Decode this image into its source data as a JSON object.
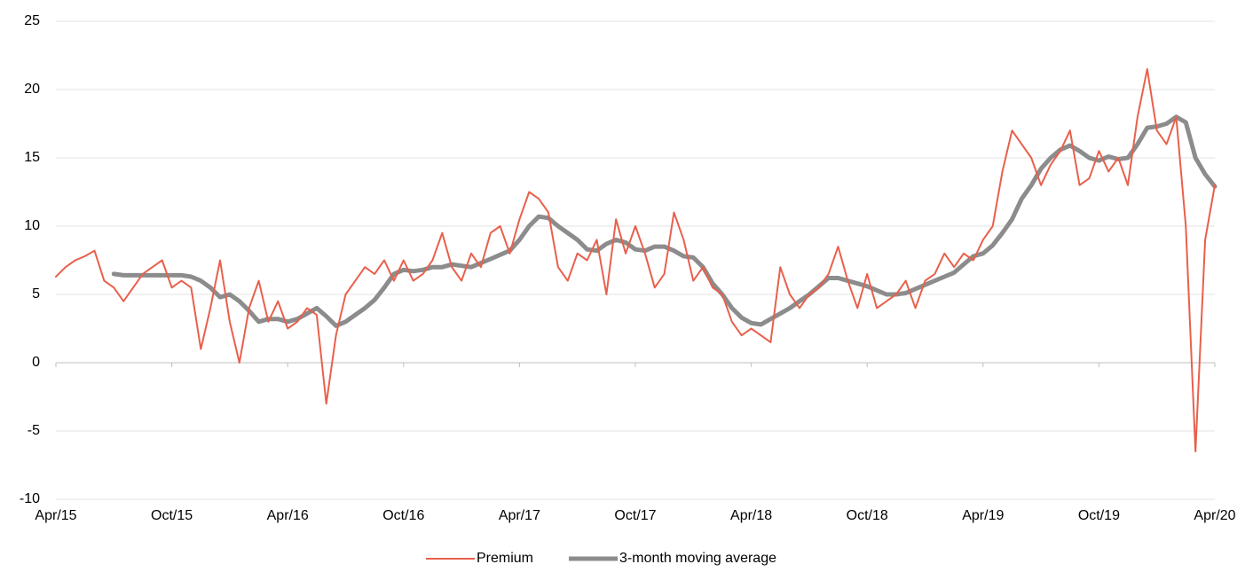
{
  "chart_data": {
    "type": "line",
    "categories": [
      "Apr/15",
      null,
      null,
      null,
      null,
      null,
      null,
      null,
      null,
      null,
      null,
      null,
      "Oct/15",
      null,
      null,
      null,
      null,
      null,
      null,
      null,
      null,
      null,
      null,
      null,
      "Apr/16",
      null,
      null,
      null,
      null,
      null,
      null,
      null,
      null,
      null,
      null,
      null,
      "Oct/16",
      null,
      null,
      null,
      null,
      null,
      null,
      null,
      null,
      null,
      null,
      null,
      "Apr/17",
      null,
      null,
      null,
      null,
      null,
      null,
      null,
      null,
      null,
      null,
      null,
      "Oct/17",
      null,
      null,
      null,
      null,
      null,
      null,
      null,
      null,
      null,
      null,
      null,
      "Apr/18",
      null,
      null,
      null,
      null,
      null,
      null,
      null,
      null,
      null,
      null,
      null,
      "Oct/18",
      null,
      null,
      null,
      null,
      null,
      null,
      null,
      null,
      null,
      null,
      null,
      "Apr/19",
      null,
      null,
      null,
      null,
      null,
      null,
      null,
      null,
      null,
      null,
      null,
      "Oct/19",
      null,
      null,
      null,
      null,
      null,
      null,
      null,
      null,
      null,
      null,
      null,
      "Apr/20"
    ],
    "series": [
      {
        "name": "Premium",
        "color": "#e8604c",
        "width": 2,
        "values": [
          6.3,
          7,
          7.5,
          7.8,
          8.2,
          6,
          5.5,
          4.5,
          5.5,
          6.5,
          7,
          7.5,
          5.5,
          6,
          5.5,
          1,
          4,
          7.5,
          3,
          0,
          4,
          6,
          3,
          4.5,
          2.5,
          3,
          4,
          3.5,
          -3,
          2,
          5,
          6,
          7,
          6.5,
          7.5,
          6,
          7.5,
          6,
          6.5,
          7.5,
          9.5,
          7,
          6,
          8,
          7,
          9.5,
          10,
          8,
          10.5,
          12.5,
          12,
          11,
          7,
          6,
          8,
          7.5,
          9,
          5,
          10.5,
          8,
          10,
          8,
          5.5,
          6.5,
          11,
          9,
          6,
          7,
          5.5,
          5,
          3,
          2,
          2.5,
          2,
          1.5,
          7,
          5,
          4,
          5,
          5.5,
          6.5,
          8.5,
          6,
          4,
          6.5,
          4,
          4.5,
          5,
          6,
          4,
          6,
          6.5,
          8,
          7,
          8,
          7.5,
          9,
          10,
          14,
          17,
          16,
          15,
          13,
          14.5,
          15.5,
          17,
          13,
          13.5,
          15.5,
          14,
          15,
          13,
          18,
          21.5,
          17,
          16,
          18,
          10,
          -6.5,
          9,
          13
        ]
      },
      {
        "name": "3-month moving average",
        "color": "#8c8c8c",
        "width": 5,
        "values": [
          null,
          null,
          null,
          null,
          null,
          null,
          6.5,
          6.4,
          6.4,
          6.4,
          6.4,
          6.4,
          6.4,
          6.4,
          6.3,
          6,
          5.5,
          4.8,
          5,
          4.5,
          3.8,
          3,
          3.2,
          3.2,
          3,
          3.2,
          3.6,
          4,
          3.4,
          2.7,
          3,
          3.5,
          4,
          4.6,
          5.5,
          6.5,
          6.8,
          6.7,
          6.8,
          7,
          7,
          7.2,
          7.1,
          7,
          7.3,
          7.6,
          7.9,
          8.2,
          9,
          10,
          10.7,
          10.6,
          10,
          9.5,
          9,
          8.3,
          8.2,
          8.7,
          9,
          8.8,
          8.3,
          8.2,
          8.5,
          8.5,
          8.2,
          7.8,
          7.7,
          7,
          5.8,
          5,
          4,
          3.3,
          2.9,
          2.8,
          3.2,
          3.6,
          4,
          4.5,
          5,
          5.6,
          6.2,
          6.2,
          6,
          5.8,
          5.6,
          5.3,
          5,
          5,
          5.1,
          5.4,
          5.7,
          6,
          6.3,
          6.6,
          7.2,
          7.8,
          8,
          8.6,
          9.5,
          10.5,
          12,
          13,
          14.2,
          15,
          15.6,
          15.9,
          15.5,
          15,
          14.8,
          15.1,
          14.9,
          15,
          16,
          17.2,
          17.3,
          17.5,
          18,
          17.6,
          15,
          13.8,
          12.9
        ]
      }
    ],
    "ylim": [
      -10,
      25
    ],
    "yticks": [
      -10,
      -5,
      0,
      5,
      10,
      15,
      20,
      25
    ],
    "grid": true,
    "legend": "bottom"
  }
}
